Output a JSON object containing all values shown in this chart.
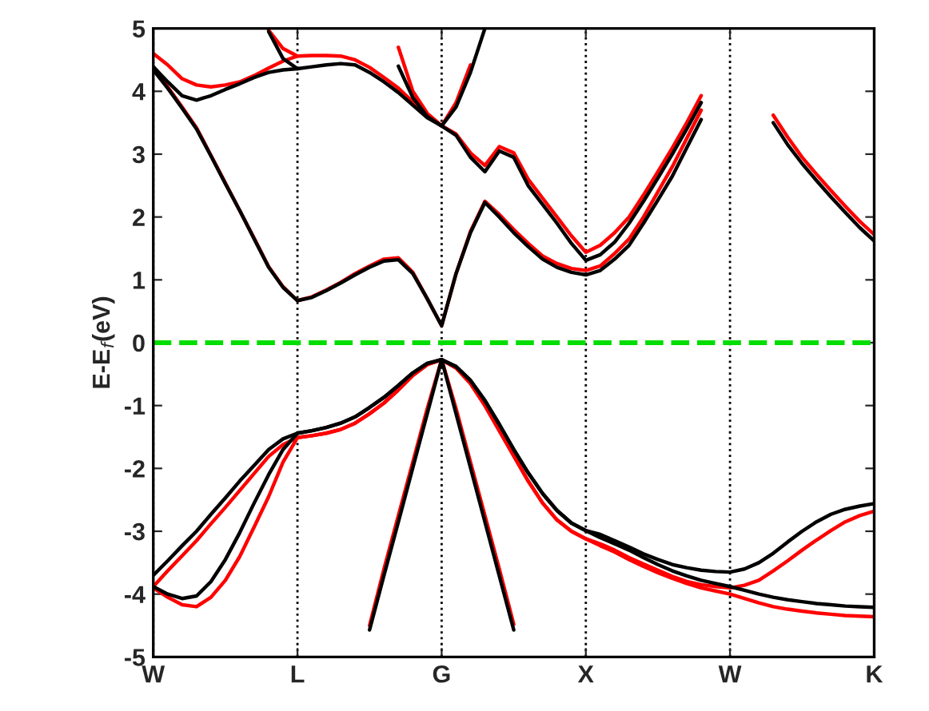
{
  "chart_data": {
    "type": "line",
    "ylabel": "E-E$_{f}$(eV)",
    "categories": [
      "W",
      null,
      null,
      null,
      null,
      null,
      null,
      null,
      null,
      null,
      "L",
      null,
      null,
      null,
      null,
      null,
      null,
      null,
      null,
      null,
      "G",
      null,
      null,
      null,
      null,
      null,
      null,
      null,
      null,
      null,
      "X",
      null,
      null,
      null,
      null,
      null,
      null,
      null,
      null,
      null,
      "W",
      null,
      null,
      null,
      null,
      null,
      null,
      null,
      null,
      null,
      "K"
    ],
    "ylim": [
      -5,
      5
    ],
    "yticks": [
      -5,
      -4,
      -3,
      -2,
      -1,
      0,
      1,
      2,
      3,
      4,
      5
    ],
    "grid": "x",
    "marker": "none",
    "line_style": "solid",
    "ref_lines": [
      {
        "axis": "y",
        "value": 0,
        "color": "#00dd00",
        "line_style": "dashed"
      }
    ],
    "series": [
      {
        "color": "#ff0000",
        "values": [
          4.39,
          4.07,
          3.75,
          3.42,
          2.98,
          2.54,
          2.1,
          1.66,
          1.21,
          0.89,
          0.67,
          0.73,
          0.84,
          0.96,
          1.1,
          1.22,
          1.33,
          1.35,
          1.12,
          0.7,
          0.27,
          1.1,
          1.77,
          2.25,
          2.04,
          1.8,
          1.58,
          1.38,
          1.26,
          1.18,
          1.15,
          1.22,
          1.42,
          1.65,
          2.0,
          2.4,
          2.8,
          3.25,
          3.7,
          null,
          null,
          null,
          null,
          3.62,
          3.27,
          2.95,
          2.68,
          2.42,
          2.17,
          1.93,
          1.72
        ]
      },
      {
        "color": "#ff0000",
        "values": [
          4.6,
          4.42,
          4.2,
          4.1,
          4.07,
          4.1,
          4.15,
          4.25,
          4.37,
          4.48,
          4.56,
          4.57,
          4.57,
          4.56,
          4.5,
          4.38,
          4.22,
          4.05,
          3.83,
          3.6,
          3.45,
          3.32,
          3.02,
          2.82,
          3.12,
          3.02,
          2.6,
          2.3,
          2.0,
          1.7,
          1.44,
          1.55,
          1.75,
          2.0,
          2.35,
          2.72,
          3.1,
          3.5,
          3.93,
          null,
          null,
          null,
          null,
          null,
          null,
          null,
          null,
          null,
          null,
          null,
          null
        ]
      },
      {
        "color": "#ff0000",
        "values": [
          null,
          null,
          null,
          null,
          null,
          null,
          null,
          null,
          null,
          null,
          null,
          null,
          null,
          null,
          null,
          null,
          null,
          4.7,
          4.0,
          3.65,
          3.45,
          3.82,
          4.42,
          null,
          null,
          null,
          null,
          null,
          null,
          null,
          null,
          null,
          null,
          null,
          null,
          null,
          null,
          null,
          null,
          null,
          null,
          null,
          null,
          null,
          null,
          null,
          null,
          null,
          null,
          null,
          null
        ]
      },
      {
        "color": "#ff0000",
        "values": [
          null,
          null,
          null,
          null,
          null,
          null,
          null,
          null,
          4.97,
          4.68,
          4.56,
          null,
          null,
          null,
          null,
          null,
          null,
          null,
          null,
          null,
          null,
          null,
          null,
          null,
          null,
          null,
          null,
          null,
          null,
          null,
          null,
          null,
          null,
          null,
          null,
          null,
          null,
          null,
          null,
          null,
          null,
          null,
          null,
          null,
          null,
          null,
          null,
          null,
          null,
          null,
          null
        ]
      },
      {
        "color": "#ff0000",
        "values": [
          -3.88,
          -3.63,
          -3.39,
          -3.15,
          -2.88,
          -2.62,
          -2.35,
          -2.08,
          -1.81,
          -1.62,
          -1.51,
          -1.48,
          -1.44,
          -1.38,
          -1.28,
          -1.13,
          -0.96,
          -0.75,
          -0.52,
          -0.35,
          -0.27,
          -0.4,
          -0.65,
          -1.0,
          -1.4,
          -1.8,
          -2.2,
          -2.55,
          -2.82,
          -3.0,
          -3.12,
          -3.2,
          -3.3,
          -3.42,
          -3.52,
          -3.62,
          -3.72,
          -3.8,
          -3.85,
          -3.88,
          -3.9,
          -3.86,
          -3.78,
          -3.63,
          -3.47,
          -3.3,
          -3.14,
          -2.99,
          -2.85,
          -2.75,
          -2.68
        ]
      },
      {
        "color": "#ff0000",
        "values": [
          -3.9,
          -4.05,
          -4.17,
          -4.2,
          -4.05,
          -3.78,
          -3.4,
          -2.93,
          -2.45,
          -1.9,
          -1.51,
          -1.48,
          -1.44,
          -1.38,
          -1.28,
          -1.13,
          -0.96,
          -0.75,
          -0.52,
          -0.35,
          -0.27,
          -0.4,
          -0.65,
          -1.0,
          -1.4,
          -1.8,
          -2.2,
          -2.55,
          -2.82,
          -3.0,
          -3.12,
          -3.23,
          -3.33,
          -3.45,
          -3.56,
          -3.66,
          -3.75,
          -3.83,
          -3.9,
          -3.95,
          -4.0,
          -4.07,
          -4.14,
          -4.2,
          -4.24,
          -4.27,
          -4.3,
          -4.32,
          -4.34,
          -4.35,
          -4.36
        ]
      },
      {
        "color": "#ff0000",
        "values": [
          null,
          null,
          null,
          null,
          null,
          null,
          null,
          null,
          null,
          null,
          null,
          null,
          null,
          null,
          null,
          -4.5,
          -3.6,
          -2.75,
          -1.9,
          -1.05,
          -0.27,
          -1.05,
          -1.9,
          -2.75,
          -3.6,
          -4.48,
          null,
          null,
          null,
          null,
          null,
          null,
          null,
          null,
          null,
          null,
          null,
          null,
          null,
          null,
          null,
          null,
          null,
          null,
          null,
          null,
          null,
          null,
          null,
          null,
          null
        ]
      },
      {
        "color": "#000000",
        "values": [
          4.34,
          4.05,
          3.73,
          3.4,
          2.97,
          2.53,
          2.1,
          1.65,
          1.2,
          0.88,
          0.67,
          0.72,
          0.83,
          0.95,
          1.08,
          1.2,
          1.3,
          1.32,
          1.1,
          0.7,
          0.27,
          1.1,
          1.75,
          2.23,
          2.0,
          1.75,
          1.53,
          1.33,
          1.2,
          1.12,
          1.08,
          1.15,
          1.33,
          1.55,
          1.9,
          2.27,
          2.65,
          3.1,
          3.55,
          null,
          null,
          null,
          null,
          3.5,
          3.15,
          2.85,
          2.58,
          2.32,
          2.07,
          1.83,
          1.62
        ]
      },
      {
        "color": "#000000",
        "values": [
          4.39,
          4.15,
          3.93,
          3.86,
          3.93,
          4.03,
          4.12,
          4.22,
          4.3,
          4.34,
          4.36,
          4.39,
          4.42,
          4.44,
          4.42,
          4.3,
          4.15,
          3.98,
          3.78,
          3.58,
          3.45,
          3.3,
          2.95,
          2.72,
          3.05,
          2.95,
          2.5,
          2.2,
          1.9,
          1.58,
          1.31,
          1.4,
          1.6,
          1.9,
          2.25,
          2.62,
          3.0,
          3.4,
          3.82,
          null,
          null,
          null,
          null,
          null,
          null,
          null,
          null,
          null,
          null,
          null,
          null
        ]
      },
      {
        "color": "#000000",
        "values": [
          null,
          null,
          null,
          null,
          null,
          null,
          null,
          null,
          null,
          null,
          null,
          null,
          null,
          null,
          null,
          null,
          null,
          4.4,
          3.9,
          3.6,
          3.45,
          3.75,
          4.3,
          5.0,
          null,
          null,
          null,
          null,
          null,
          null,
          null,
          null,
          null,
          null,
          null,
          null,
          null,
          null,
          null,
          null,
          null,
          null,
          null,
          null,
          null,
          null,
          null,
          null,
          null,
          null,
          null
        ]
      },
      {
        "color": "#000000",
        "values": [
          null,
          null,
          null,
          null,
          null,
          null,
          null,
          null,
          4.95,
          4.52,
          4.36,
          null,
          null,
          null,
          null,
          null,
          null,
          null,
          null,
          null,
          null,
          null,
          null,
          null,
          null,
          null,
          null,
          null,
          null,
          null,
          null,
          null,
          null,
          null,
          null,
          null,
          null,
          null,
          null,
          null,
          null,
          null,
          null,
          null,
          null,
          null,
          null,
          null,
          null,
          null,
          null
        ]
      },
      {
        "color": "#000000",
        "values": [
          -3.7,
          -3.47,
          -3.23,
          -3.0,
          -2.73,
          -2.47,
          -2.2,
          -1.95,
          -1.7,
          -1.53,
          -1.44,
          -1.4,
          -1.35,
          -1.28,
          -1.18,
          -1.03,
          -0.87,
          -0.68,
          -0.48,
          -0.33,
          -0.27,
          -0.38,
          -0.6,
          -0.92,
          -1.3,
          -1.7,
          -2.07,
          -2.4,
          -2.67,
          -2.87,
          -2.99,
          -3.05,
          -3.15,
          -3.25,
          -3.36,
          -3.45,
          -3.53,
          -3.58,
          -3.62,
          -3.64,
          -3.65,
          -3.6,
          -3.5,
          -3.35,
          -3.17,
          -3.0,
          -2.85,
          -2.73,
          -2.65,
          -2.6,
          -2.56
        ]
      },
      {
        "color": "#000000",
        "values": [
          -3.88,
          -4.0,
          -4.07,
          -4.03,
          -3.8,
          -3.45,
          -3.02,
          -2.55,
          -2.1,
          -1.7,
          -1.44,
          -1.4,
          -1.35,
          -1.28,
          -1.18,
          -1.03,
          -0.87,
          -0.68,
          -0.48,
          -0.33,
          -0.27,
          -0.38,
          -0.6,
          -0.92,
          -1.3,
          -1.7,
          -2.07,
          -2.4,
          -2.67,
          -2.87,
          -2.99,
          -3.1,
          -3.2,
          -3.3,
          -3.42,
          -3.53,
          -3.63,
          -3.71,
          -3.78,
          -3.83,
          -3.88,
          -3.94,
          -4.0,
          -4.05,
          -4.09,
          -4.12,
          -4.15,
          -4.17,
          -4.19,
          -4.2,
          -4.21
        ]
      },
      {
        "color": "#000000",
        "values": [
          null,
          null,
          null,
          null,
          null,
          null,
          null,
          null,
          null,
          null,
          null,
          null,
          null,
          null,
          null,
          -4.57,
          -3.7,
          -2.85,
          -1.99,
          -1.13,
          -0.27,
          -1.13,
          -1.99,
          -2.85,
          -3.71,
          -4.57,
          null,
          null,
          null,
          null,
          null,
          null,
          null,
          null,
          null,
          null,
          null,
          null,
          null,
          null,
          null,
          null,
          null,
          null,
          null,
          null,
          null,
          null,
          null,
          null,
          null
        ]
      }
    ]
  }
}
